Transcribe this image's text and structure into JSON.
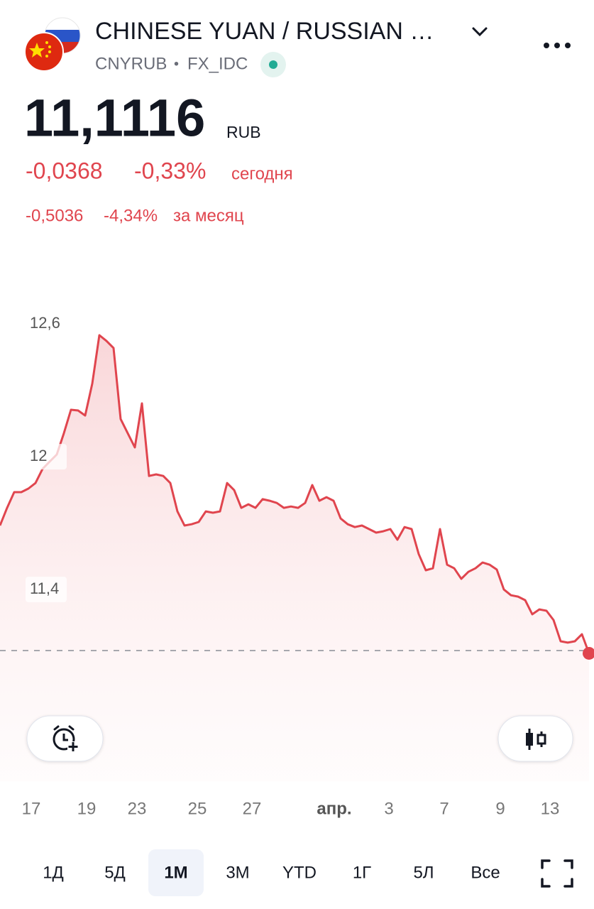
{
  "header": {
    "title": "CHINESE YUAN / RUSSIAN …",
    "symbol": "CNYRUB",
    "separator": "•",
    "exchange": "FX_IDC"
  },
  "quote": {
    "price": "11,1116",
    "currency": "RUB",
    "change_day": "-0,0368",
    "change_day_pct": "-0,33%",
    "day_label": "сегодня",
    "change_month": "-0,5036",
    "change_month_pct": "-4,34%",
    "month_label": "за месяц"
  },
  "chart_data": {
    "type": "line",
    "color": "#e0454e",
    "values": [
      11.689,
      11.769,
      11.84,
      11.84,
      11.856,
      11.881,
      11.945,
      11.978,
      12.01,
      12.106,
      12.212,
      12.209,
      12.186,
      12.33,
      12.549,
      12.523,
      12.491,
      12.17,
      12.106,
      12.042,
      12.241,
      11.913,
      11.92,
      11.913,
      11.881,
      11.753,
      11.689,
      11.695,
      11.705,
      11.753,
      11.747,
      11.753,
      11.881,
      11.849,
      11.769,
      11.785,
      11.769,
      11.808,
      11.801,
      11.791,
      11.769,
      11.775,
      11.769,
      11.791,
      11.872,
      11.801,
      11.817,
      11.801,
      11.721,
      11.695,
      11.682,
      11.689,
      11.673,
      11.657,
      11.663,
      11.673,
      11.625,
      11.682,
      11.673,
      11.56,
      11.487,
      11.496,
      11.673,
      11.512,
      11.496,
      11.448,
      11.48,
      11.496,
      11.522,
      11.512,
      11.49,
      11.4,
      11.374,
      11.368,
      11.352,
      11.288,
      11.31,
      11.304,
      11.262,
      11.166,
      11.16,
      11.166,
      11.198,
      11.1116
    ],
    "baseline": 11.124,
    "xlim": [
      0,
      83
    ],
    "xticks": [
      {
        "value": 4.4,
        "label": "17"
      },
      {
        "value": 12.2,
        "label": "19"
      },
      {
        "value": 19.3,
        "label": "23"
      },
      {
        "value": 27.8,
        "label": "25"
      },
      {
        "value": 35.5,
        "label": "27"
      },
      {
        "value": 47.1,
        "label": "апр."
      },
      {
        "value": 54.8,
        "label": "3"
      },
      {
        "value": 62.6,
        "label": "7"
      },
      {
        "value": 70.5,
        "label": "9"
      },
      {
        "value": 77.5,
        "label": "13"
      }
    ],
    "ylim": [
      10.534,
      12.78
    ],
    "yticks": [
      {
        "value": 12.6,
        "label": "12,6"
      },
      12,
      {
        "value": 11.4,
        "label": "11,4"
      }
    ],
    "grid": false
  },
  "range_tabs": {
    "items": [
      "1Д",
      "5Д",
      "1М",
      "3М",
      "YTD",
      "1Г",
      "5Л",
      "Все"
    ],
    "selected": 2
  }
}
